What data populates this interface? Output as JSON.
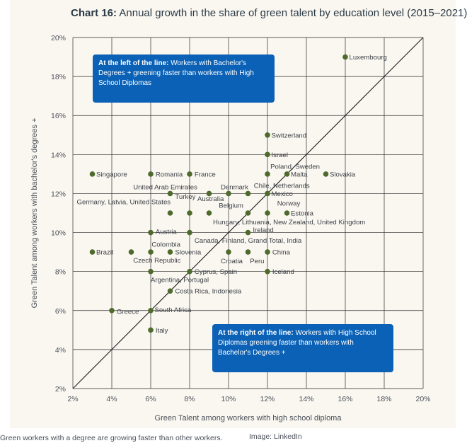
{
  "chart_data": {
    "type": "scatter",
    "title_bold": "Chart 16:",
    "title_rest": "Annual growth in the share of green talent by education level (2015–2021)",
    "xlabel": "Green Talent among workers with high school diploma",
    "ylabel": "Green Talent among workers with bachelor's degrees +",
    "xlim": [
      2,
      20
    ],
    "ylim": [
      2,
      20
    ],
    "x_ticks": [
      "2%",
      "4%",
      "6%",
      "8%",
      "10%",
      "12%",
      "14%",
      "16%",
      "18%",
      "20%"
    ],
    "y_ticks": [
      "2%",
      "4%",
      "6%",
      "8%",
      "10%",
      "12%",
      "14%",
      "16%",
      "18%",
      "20%"
    ],
    "grid": true,
    "reference_line": "diagonal y = x",
    "point_color": "#4e6b2d",
    "points": [
      {
        "x": 16,
        "y": 19
      },
      {
        "x": 12,
        "y": 15
      },
      {
        "x": 12,
        "y": 14
      },
      {
        "x": 12,
        "y": 13
      },
      {
        "x": 13,
        "y": 13
      },
      {
        "x": 15,
        "y": 13
      },
      {
        "x": 3,
        "y": 13
      },
      {
        "x": 6,
        "y": 13
      },
      {
        "x": 8,
        "y": 13
      },
      {
        "x": 7,
        "y": 12
      },
      {
        "x": 9,
        "y": 12
      },
      {
        "x": 10,
        "y": 12
      },
      {
        "x": 11,
        "y": 12
      },
      {
        "x": 12,
        "y": 12
      },
      {
        "x": 7,
        "y": 11
      },
      {
        "x": 8,
        "y": 11
      },
      {
        "x": 9,
        "y": 11
      },
      {
        "x": 11,
        "y": 11
      },
      {
        "x": 12,
        "y": 11
      },
      {
        "x": 13,
        "y": 11
      },
      {
        "x": 6,
        "y": 10
      },
      {
        "x": 8,
        "y": 10
      },
      {
        "x": 11,
        "y": 10
      },
      {
        "x": 3,
        "y": 9
      },
      {
        "x": 5,
        "y": 9
      },
      {
        "x": 6,
        "y": 9
      },
      {
        "x": 7,
        "y": 9
      },
      {
        "x": 10,
        "y": 9
      },
      {
        "x": 11,
        "y": 9
      },
      {
        "x": 12,
        "y": 9
      },
      {
        "x": 6,
        "y": 8
      },
      {
        "x": 8,
        "y": 8
      },
      {
        "x": 12,
        "y": 8
      },
      {
        "x": 7,
        "y": 7
      },
      {
        "x": 4,
        "y": 6
      },
      {
        "x": 6,
        "y": 6
      },
      {
        "x": 6,
        "y": 5
      }
    ],
    "labels": [
      {
        "text": "Luxembourg",
        "x": 16.2,
        "y": 19
      },
      {
        "text": "Switzerland",
        "x": 12.2,
        "y": 15
      },
      {
        "text": "Israel",
        "x": 12.2,
        "y": 14
      },
      {
        "text": "Poland, Sweden",
        "x": 12.15,
        "y": 13.4
      },
      {
        "text": "Malta",
        "x": 13.2,
        "y": 13
      },
      {
        "text": "Slovakia",
        "x": 15.2,
        "y": 13
      },
      {
        "text": "Singapore",
        "x": 3.2,
        "y": 13
      },
      {
        "text": "Romania",
        "x": 6.25,
        "y": 13
      },
      {
        "text": "France",
        "x": 8.25,
        "y": 13
      },
      {
        "text": "Chile, Netherlands",
        "x": 11.3,
        "y": 12.42
      },
      {
        "text": "United Arab Emirates",
        "x": 5.1,
        "y": 12.35
      },
      {
        "text": "Denmark",
        "x": 9.6,
        "y": 12.35
      },
      {
        "text": "Mexico",
        "x": 12.2,
        "y": 12
      },
      {
        "text": "Turkey",
        "x": 7.25,
        "y": 11.85
      },
      {
        "text": "Australia",
        "x": 8.4,
        "y": 11.75
      },
      {
        "text": "Norway",
        "x": 12.5,
        "y": 11.5
      },
      {
        "text": "Germany, Latvia, United States",
        "x": 2.2,
        "y": 11.58
      },
      {
        "text": "Belgium",
        "x": 9.5,
        "y": 11.4
      },
      {
        "text": "Estonia",
        "x": 13.2,
        "y": 11
      },
      {
        "text": "Hungary, Lithuania, New Zealand, United Kingdom",
        "x": 9.2,
        "y": 10.55
      },
      {
        "text": "Austria",
        "x": 6.25,
        "y": 10.05
      },
      {
        "text": "Ireland",
        "x": 11.25,
        "y": 10.15
      },
      {
        "text": "Canada, Finland, Grand Total, India",
        "x": 8.25,
        "y": 9.6
      },
      {
        "text": "Colombia",
        "x": 6.05,
        "y": 9.4
      },
      {
        "text": "Brazil",
        "x": 3.2,
        "y": 9
      },
      {
        "text": "Slovenia",
        "x": 7.25,
        "y": 9
      },
      {
        "text": "China",
        "x": 12.25,
        "y": 9
      },
      {
        "text": "Czech Republic",
        "x": 5.1,
        "y": 8.58
      },
      {
        "text": "Croatia",
        "x": 9.6,
        "y": 8.55
      },
      {
        "text": "Peru",
        "x": 11.1,
        "y": 8.55
      },
      {
        "text": "Cyprus, Spain",
        "x": 8.25,
        "y": 8
      },
      {
        "text": "Iceland",
        "x": 12.25,
        "y": 8
      },
      {
        "text": "Argentina, Portugal",
        "x": 6.0,
        "y": 7.58
      },
      {
        "text": "Costa Rica, Indonesia",
        "x": 7.25,
        "y": 7
      },
      {
        "text": "Greece",
        "x": 4.25,
        "y": 5.95
      },
      {
        "text": "South Africa",
        "x": 6.2,
        "y": 6.05
      },
      {
        "text": "Italy",
        "x": 6.25,
        "y": 5
      }
    ],
    "callout_left": {
      "bold": "At the left of the line:",
      "text": "Workers with Bachelor's Degrees + greening faster than workers with High School Diplomas"
    },
    "callout_right": {
      "bold": "At the right of the line:",
      "text": "Workers with High School Diplomas greening faster than workers with Bachelor's Degrees +"
    }
  },
  "caption": "Green workers with a degree are growing faster than other workers.",
  "credit": "Image: LinkedIn"
}
